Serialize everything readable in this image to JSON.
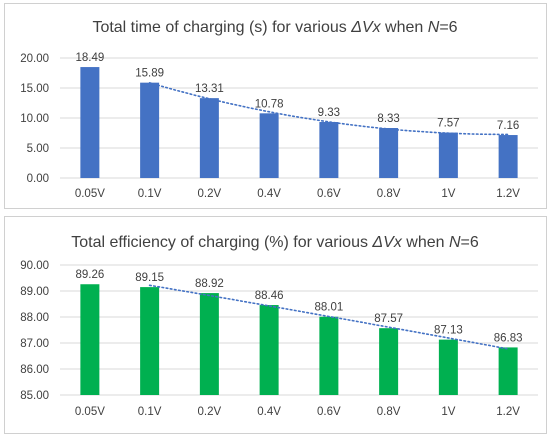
{
  "chart_data": [
    {
      "type": "bar",
      "title_parts": [
        {
          "text": "Total time of charging (s) for various ",
          "italic": false
        },
        {
          "text": "ΔVx",
          "italic": true
        },
        {
          "text": " when ",
          "italic": false
        },
        {
          "text": "N",
          "italic": true
        },
        {
          "text": "=6",
          "italic": false
        }
      ],
      "categories": [
        "0.05V",
        "0.1V",
        "0.2V",
        "0.4V",
        "0.6V",
        "0.8V",
        "1V",
        "1.2V"
      ],
      "values": [
        18.49,
        15.89,
        13.31,
        10.78,
        9.33,
        8.33,
        7.57,
        7.16
      ],
      "value_labels": [
        "18.49",
        "15.89",
        "13.31",
        "10.78",
        "9.33",
        "8.33",
        "7.57",
        "7.16"
      ],
      "ylim": [
        0,
        20
      ],
      "yticks": [
        "0.00",
        "5.00",
        "10.00",
        "15.00",
        "20.00"
      ],
      "ytick_values": [
        0,
        5,
        10,
        15,
        20
      ],
      "color": "#4472c4",
      "trendline": {
        "type": "dotted",
        "from_category": 1,
        "color": "#4472c4"
      },
      "grid": true,
      "legend": "none"
    },
    {
      "type": "bar",
      "title_parts": [
        {
          "text": "Total efficiency of charging (%) for various ",
          "italic": false
        },
        {
          "text": "ΔVx",
          "italic": true
        },
        {
          "text": " when ",
          "italic": false
        },
        {
          "text": "N",
          "italic": true
        },
        {
          "text": "=6",
          "italic": false
        }
      ],
      "categories": [
        "0.05V",
        "0.1V",
        "0.2V",
        "0.4V",
        "0.6V",
        "0.8V",
        "1V",
        "1.2V"
      ],
      "values": [
        89.26,
        89.15,
        88.92,
        88.46,
        88.01,
        87.57,
        87.13,
        86.83
      ],
      "value_labels": [
        "89.26",
        "89.15",
        "88.92",
        "88.46",
        "88.01",
        "87.57",
        "87.13",
        "86.83"
      ],
      "ylim": [
        85,
        90
      ],
      "yticks": [
        "85.00",
        "86.00",
        "87.00",
        "88.00",
        "89.00",
        "90.00"
      ],
      "ytick_values": [
        85,
        86,
        87,
        88,
        89,
        90
      ],
      "color": "#00b050",
      "trendline": {
        "type": "dotted",
        "from_category": 1,
        "color": "#4472c4"
      },
      "grid": true,
      "legend": "none"
    }
  ]
}
